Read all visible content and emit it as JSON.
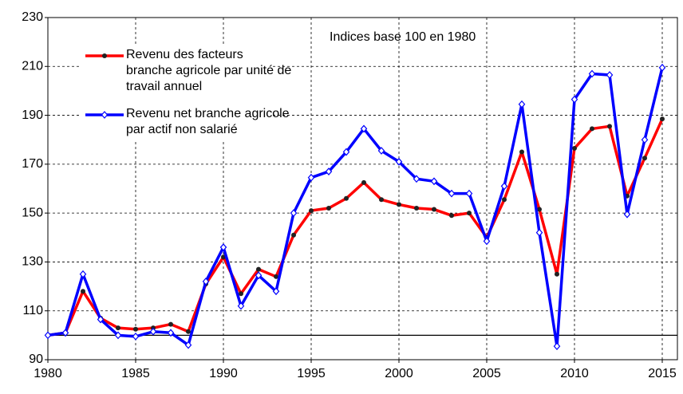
{
  "chart_data": {
    "type": "line",
    "annotation": "Indices base 100 en 1980",
    "x": [
      1980,
      1981,
      1982,
      1983,
      1984,
      1985,
      1986,
      1987,
      1988,
      1989,
      1990,
      1991,
      1992,
      1993,
      1994,
      1995,
      1996,
      1997,
      1998,
      1999,
      2000,
      2001,
      2002,
      2003,
      2004,
      2005,
      2006,
      2007,
      2008,
      2009,
      2010,
      2011,
      2012,
      2013,
      2014,
      2015
    ],
    "series": [
      {
        "name": "Revenu des facteurs\nbranche agricole par unité de\ntravail annuel",
        "color": "#ff0000",
        "marker_color": "#222222",
        "values": [
          100,
          101,
          118,
          107,
          103,
          102.5,
          103,
          104.5,
          101.5,
          121,
          132,
          117,
          127,
          124,
          141,
          151,
          152,
          156,
          162.5,
          155.5,
          153.5,
          152,
          151.5,
          149,
          150,
          140,
          155.5,
          175,
          151.5,
          125,
          176.5,
          184.5,
          185.5,
          157,
          172.5,
          188.5
        ]
      },
      {
        "name": "Revenu net branche agricole\npar actif non salarié",
        "color": "#0000ff",
        "marker_color": "#ffffff",
        "values": [
          100,
          101,
          125,
          106.5,
          100,
          99.5,
          101.5,
          101,
          96,
          122,
          136,
          112,
          124.5,
          118,
          150,
          164.5,
          167,
          175,
          184.5,
          175.5,
          171,
          164,
          163,
          158,
          158,
          138.5,
          161,
          194.5,
          142,
          95.5,
          196.5,
          207,
          206.5,
          149.5,
          180,
          209.5
        ]
      }
    ],
    "reference_line": 100,
    "xlim": [
      1980,
      2016
    ],
    "xticks": [
      1980,
      1985,
      1990,
      1995,
      2000,
      2005,
      2010,
      2015
    ],
    "ylim": [
      90,
      230
    ],
    "yticks": [
      90,
      110,
      130,
      150,
      170,
      190,
      210,
      230
    ],
    "grid": true
  }
}
